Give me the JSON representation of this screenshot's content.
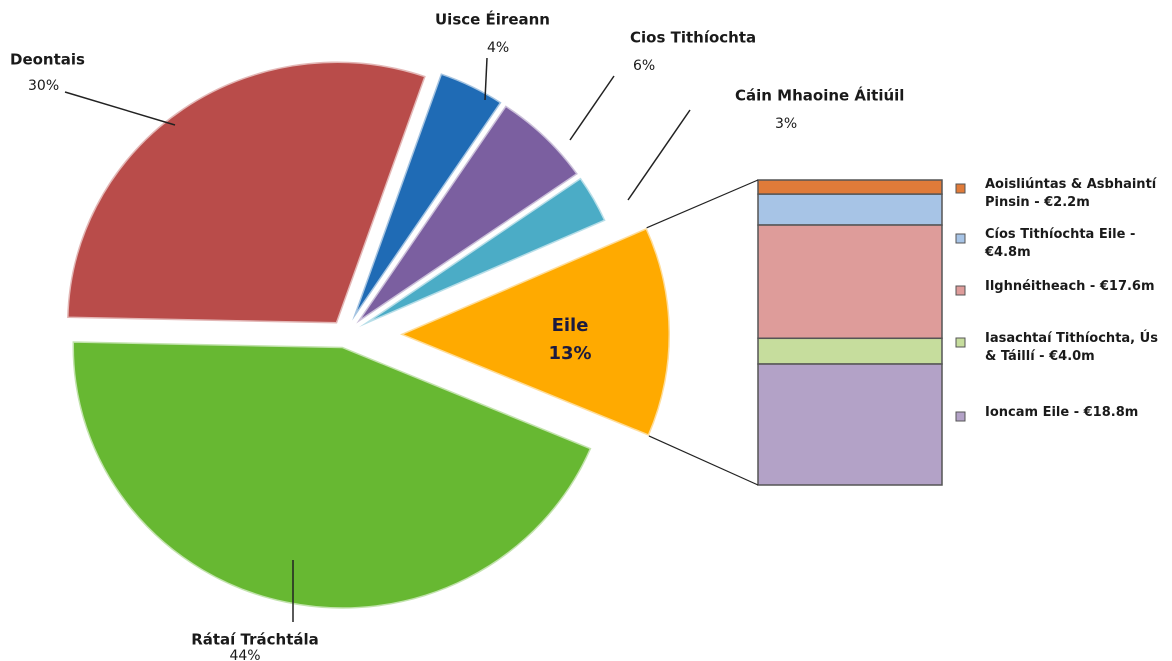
{
  "chart_data": {
    "type": "pie",
    "categories": [
      "Eile",
      "Rátaí Tráchtála",
      "Deontais",
      "Uisce Éireann",
      "Cios Tithíochta",
      "Cáin Mhaoine Áitiúil"
    ],
    "values": [
      13,
      44,
      30,
      4,
      6,
      3
    ],
    "value_labels": [
      "13%",
      "44%",
      "30%",
      "4%",
      "6%",
      "3%"
    ],
    "colors": [
      "#ffaa00",
      "#67b832",
      "#b94c4a",
      "#1f6bb5",
      "#7b5fa0",
      "#4bacc6"
    ],
    "breakdown": {
      "type": "stacked-bar",
      "categories": [
        "Aoisliúntas & Asbhaintí Pinsin - €2.2m",
        "Cíos Tithíochta Eile - €4.8m",
        "Ilghnéitheach - €17.6m",
        "Iasachtaí Tithíochta, Ús & Táillí - €4.0m",
        "Ioncam Eile - €18.8m"
      ],
      "values": [
        2.2,
        4.8,
        17.6,
        4.0,
        18.8
      ],
      "colors": [
        "#e07b39",
        "#a7c4e6",
        "#de9c9a",
        "#c6dd9d",
        "#b3a2c7"
      ]
    }
  }
}
